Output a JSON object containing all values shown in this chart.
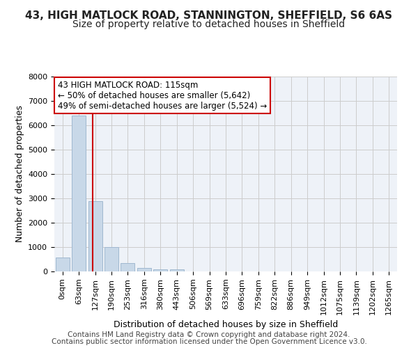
{
  "title1": "43, HIGH MATLOCK ROAD, STANNINGTON, SHEFFIELD, S6 6AS",
  "title2": "Size of property relative to detached houses in Sheffield",
  "xlabel": "Distribution of detached houses by size in Sheffield",
  "ylabel": "Number of detached properties",
  "footer1": "Contains HM Land Registry data © Crown copyright and database right 2024.",
  "footer2": "Contains public sector information licensed under the Open Government Licence v3.0.",
  "annotation_line1": "43 HIGH MATLOCK ROAD: 115sqm",
  "annotation_line2": "← 50% of detached houses are smaller (5,642)",
  "annotation_line3": "49% of semi-detached houses are larger (5,524) →",
  "bin_labels": [
    "0sqm",
    "63sqm",
    "127sqm",
    "190sqm",
    "253sqm",
    "316sqm",
    "380sqm",
    "443sqm",
    "506sqm",
    "569sqm",
    "633sqm",
    "696sqm",
    "759sqm",
    "822sqm",
    "886sqm",
    "949sqm",
    "1012sqm",
    "1075sqm",
    "1139sqm",
    "1202sqm",
    "1265sqm"
  ],
  "bar_values": [
    560,
    6400,
    2900,
    990,
    340,
    155,
    85,
    75,
    0,
    0,
    0,
    0,
    0,
    0,
    0,
    0,
    0,
    0,
    0,
    0,
    0
  ],
  "bar_color": "#c8d8e8",
  "bar_edge_color": "#a0b8d0",
  "bar_width": 0.85,
  "vline_x": 1.83,
  "vline_color": "#cc0000",
  "ylim": [
    0,
    8000
  ],
  "yticks": [
    0,
    1000,
    2000,
    3000,
    4000,
    5000,
    6000,
    7000,
    8000
  ],
  "background_color": "#ffffff",
  "grid_color": "#cccccc",
  "plot_bg_color": "#eef2f8",
  "annotation_box_color": "#ffffff",
  "annotation_box_edge": "#cc0000",
  "title1_fontsize": 11,
  "title2_fontsize": 10,
  "axis_label_fontsize": 9,
  "tick_fontsize": 8,
  "annotation_fontsize": 8.5,
  "footer_fontsize": 7.5
}
